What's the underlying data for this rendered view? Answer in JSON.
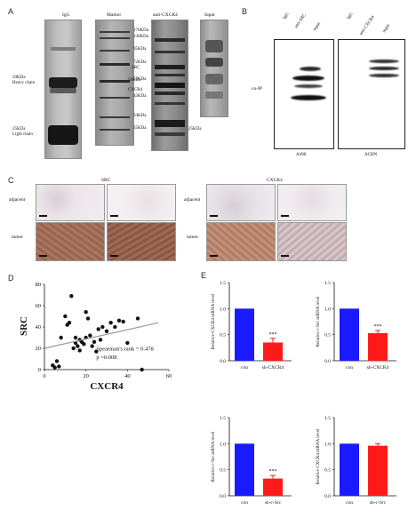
{
  "panels": {
    "A": {
      "label": "A",
      "lanes": [
        "IgG",
        "Marker",
        "anti-CXCR4",
        "Input"
      ],
      "igg_left": [
        "50KDa",
        "Heavy chain",
        "25KDa",
        "Light chain"
      ],
      "marker_ladder": [
        "170KDa",
        "130KDa",
        "95KDa",
        "72KDa",
        "55KDa",
        "43KDa",
        "34KDa",
        "25KDa"
      ],
      "cxcr4_left": [
        "SRC",
        "50KDa",
        "CXCR4"
      ],
      "cxcr4_bottom": "25KDa"
    },
    "B": {
      "label": "B",
      "left_lanes": [
        "IgG",
        "anti-SRC",
        "input"
      ],
      "right_lanes": [
        "IgG",
        "anti-CXCR4",
        "input"
      ],
      "row_label": "co-IP",
      "left_cell": "A498",
      "right_cell": "ACHN"
    },
    "C": {
      "label": "C",
      "src_title": "SRC",
      "cxcr4_title": "CXCR4",
      "row_adjacent": "adjacent",
      "row_tumor": "tumor"
    },
    "D": {
      "label": "D"
    },
    "E": {
      "label": "E"
    }
  },
  "chart_data": [
    {
      "type": "scatter",
      "panel": "D",
      "title": "",
      "xlabel": "CXCR4",
      "ylabel": "SRC",
      "xlim": [
        0,
        60
      ],
      "ylim": [
        0,
        80
      ],
      "xticks": [
        0,
        20,
        40,
        60
      ],
      "yticks": [
        0,
        20,
        40,
        60,
        80
      ],
      "points": [
        [
          4,
          4
        ],
        [
          5,
          2
        ],
        [
          6,
          8
        ],
        [
          7,
          3
        ],
        [
          8,
          30
        ],
        [
          10,
          50
        ],
        [
          11,
          42
        ],
        [
          12,
          44
        ],
        [
          13,
          69
        ],
        [
          14,
          20
        ],
        [
          15,
          25
        ],
        [
          15,
          30
        ],
        [
          16,
          22
        ],
        [
          17,
          18
        ],
        [
          17,
          28
        ],
        [
          18,
          26
        ],
        [
          19,
          24
        ],
        [
          20,
          30
        ],
        [
          20,
          54
        ],
        [
          21,
          48
        ],
        [
          22,
          32
        ],
        [
          23,
          22
        ],
        [
          24,
          26
        ],
        [
          25,
          17
        ],
        [
          26,
          38
        ],
        [
          27,
          28
        ],
        [
          28,
          40
        ],
        [
          30,
          36
        ],
        [
          32,
          44
        ],
        [
          34,
          40
        ],
        [
          36,
          46
        ],
        [
          38,
          45
        ],
        [
          40,
          25
        ],
        [
          45,
          48
        ],
        [
          47,
          0
        ]
      ],
      "trendline": [
        [
          0,
          20
        ],
        [
          55,
          44
        ]
      ],
      "annotations": [
        "Spearman's rank = 0.478",
        "p =0.008"
      ]
    },
    {
      "type": "bar",
      "panel": "E",
      "ylabel": "Relative CXCR4 mRNA level",
      "categories": [
        "con",
        "sh-CXCR4"
      ],
      "values": [
        1.0,
        0.35
      ],
      "errors": [
        0,
        0.08
      ],
      "colors": [
        "#1a1aff",
        "#ff1a1a"
      ],
      "ylim": [
        0,
        1.5
      ],
      "yticks": [
        "0.0",
        "0.5",
        "1.0",
        "1.5"
      ],
      "significance": [
        "",
        "***"
      ]
    },
    {
      "type": "bar",
      "panel": "E",
      "ylabel": "Relative c-Src mRNA level",
      "categories": [
        "con",
        "sh-CXCR4"
      ],
      "values": [
        1.0,
        0.53
      ],
      "errors": [
        0,
        0.05
      ],
      "colors": [
        "#1a1aff",
        "#ff1a1a"
      ],
      "ylim": [
        0,
        1.5
      ],
      "yticks": [
        "0.0",
        "0.5",
        "1.0",
        "1.5"
      ],
      "significance": [
        "",
        "***"
      ]
    },
    {
      "type": "bar",
      "panel": "E",
      "ylabel": "Relative c-Src mRNA level",
      "categories": [
        "con",
        "sh-c-Src"
      ],
      "values": [
        1.0,
        0.33
      ],
      "errors": [
        0,
        0.06
      ],
      "colors": [
        "#1a1aff",
        "#ff1a1a"
      ],
      "ylim": [
        0,
        1.5
      ],
      "yticks": [
        "0.0",
        "0.5",
        "1.0",
        "1.5"
      ],
      "significance": [
        "",
        "***"
      ]
    },
    {
      "type": "bar",
      "panel": "E",
      "ylabel": "Relative CXCR4 mRNA level",
      "categories": [
        "con",
        "sh-c-Src"
      ],
      "values": [
        1.0,
        0.96
      ],
      "errors": [
        0,
        0.04
      ],
      "colors": [
        "#1a1aff",
        "#ff1a1a"
      ],
      "ylim": [
        0,
        1.5
      ],
      "yticks": [
        "0.0",
        "0.5",
        "1.0",
        "1.5"
      ],
      "significance": [
        "",
        ""
      ]
    }
  ]
}
